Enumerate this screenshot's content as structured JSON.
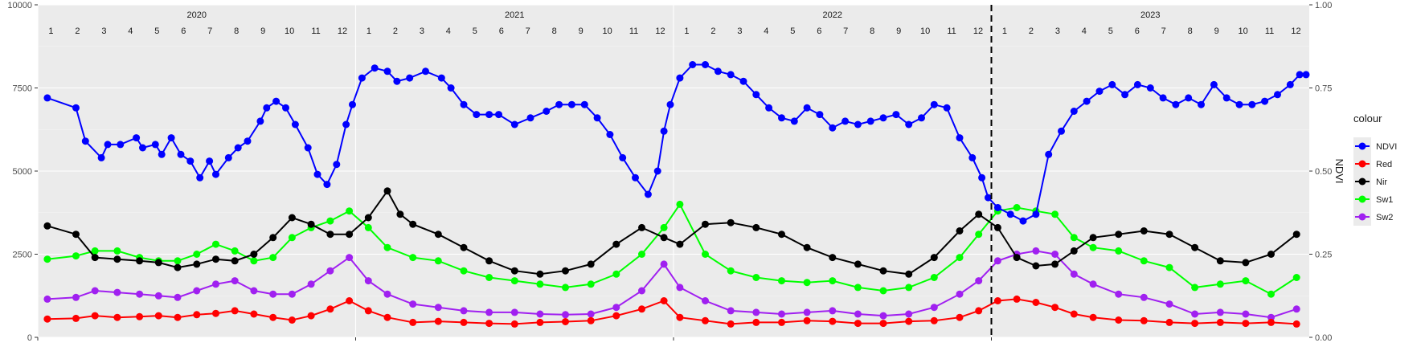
{
  "chart_data": {
    "type": "line",
    "y_left": {
      "lim": [
        0,
        10000
      ],
      "ticks": [
        0,
        2500,
        5000,
        7500,
        10000
      ],
      "tick_labels": [
        "0",
        "2500",
        "5000",
        "7500",
        "10000"
      ]
    },
    "y_right": {
      "label": "NDVI",
      "lim": [
        0,
        1
      ],
      "ticks": [
        0,
        0.25,
        0.5,
        0.75,
        1.0
      ],
      "tick_labels": [
        "0.00",
        "0.25",
        "0.50",
        "0.75",
        "1.00"
      ]
    },
    "x_range": [
      2020.0,
      2024.0
    ],
    "years": [
      {
        "label": "2020",
        "start": 2020
      },
      {
        "label": "2021",
        "start": 2021
      },
      {
        "label": "2022",
        "start": 2022
      },
      {
        "label": "2023",
        "start": 2023
      }
    ],
    "months": [
      "1",
      "2",
      "3",
      "4",
      "5",
      "6",
      "7",
      "8",
      "9",
      "10",
      "11",
      "12"
    ],
    "vline": {
      "x": 2023.0,
      "style": "dashed"
    },
    "grid": true,
    "legend": {
      "title": "colour",
      "position": "right"
    },
    "series": [
      {
        "name": "NDVI",
        "color": "#0000ff",
        "x": [
          2020.03,
          2020.12,
          2020.15,
          2020.2,
          2020.22,
          2020.26,
          2020.31,
          2020.33,
          2020.37,
          2020.39,
          2020.42,
          2020.45,
          2020.48,
          2020.51,
          2020.54,
          2020.56,
          2020.6,
          2020.63,
          2020.66,
          2020.7,
          2020.72,
          2020.75,
          2020.78,
          2020.81,
          2020.85,
          2020.88,
          2020.91,
          2020.94,
          2020.97,
          2020.99,
          2021.02,
          2021.06,
          2021.1,
          2021.13,
          2021.17,
          2021.22,
          2021.27,
          2021.3,
          2021.34,
          2021.38,
          2021.42,
          2021.45,
          2021.5,
          2021.55,
          2021.6,
          2021.64,
          2021.68,
          2021.72,
          2021.76,
          2021.8,
          2021.84,
          2021.88,
          2021.92,
          2021.95,
          2021.97,
          2021.99,
          2022.02,
          2022.06,
          2022.1,
          2022.14,
          2022.18,
          2022.22,
          2022.26,
          2022.3,
          2022.34,
          2022.38,
          2022.42,
          2022.46,
          2022.5,
          2022.54,
          2022.58,
          2022.62,
          2022.66,
          2022.7,
          2022.74,
          2022.78,
          2022.82,
          2022.86,
          2022.9,
          2022.94,
          2022.97,
          2022.99,
          2023.02,
          2023.06,
          2023.1,
          2023.14,
          2023.18,
          2023.22,
          2023.26,
          2023.3,
          2023.34,
          2023.38,
          2023.42,
          2023.46,
          2023.5,
          2023.54,
          2023.58,
          2023.62,
          2023.66,
          2023.7,
          2023.74,
          2023.78,
          2023.82,
          2023.86,
          2023.9,
          2023.94,
          2023.97,
          2023.99
        ],
        "values": [
          0.72,
          0.69,
          0.59,
          0.54,
          0.58,
          0.58,
          0.6,
          0.57,
          0.58,
          0.55,
          0.6,
          0.55,
          0.53,
          0.48,
          0.53,
          0.49,
          0.54,
          0.57,
          0.59,
          0.65,
          0.69,
          0.71,
          0.69,
          0.64,
          0.57,
          0.49,
          0.46,
          0.52,
          0.64,
          0.7,
          0.78,
          0.81,
          0.8,
          0.77,
          0.78,
          0.8,
          0.78,
          0.75,
          0.7,
          0.67,
          0.67,
          0.67,
          0.64,
          0.66,
          0.68,
          0.7,
          0.7,
          0.7,
          0.66,
          0.61,
          0.54,
          0.48,
          0.43,
          0.5,
          0.62,
          0.7,
          0.78,
          0.82,
          0.82,
          0.8,
          0.79,
          0.77,
          0.73,
          0.69,
          0.66,
          0.65,
          0.69,
          0.67,
          0.63,
          0.65,
          0.64,
          0.65,
          0.66,
          0.67,
          0.64,
          0.66,
          0.7,
          0.69,
          0.6,
          0.54,
          0.48,
          0.42,
          0.39,
          0.37,
          0.35,
          0.37,
          0.55,
          0.62,
          0.68,
          0.71,
          0.74,
          0.76,
          0.73,
          0.76,
          0.75,
          0.72,
          0.7,
          0.72,
          0.7,
          0.76,
          0.72,
          0.7,
          0.7,
          0.71,
          0.73,
          0.76,
          0.79,
          0.79
        ]
      },
      {
        "name": "Red",
        "color": "#ff0000",
        "x": [
          2020.03,
          2020.12,
          2020.18,
          2020.25,
          2020.32,
          2020.38,
          2020.44,
          2020.5,
          2020.56,
          2020.62,
          2020.68,
          2020.74,
          2020.8,
          2020.86,
          2020.92,
          2020.98,
          2021.04,
          2021.1,
          2021.18,
          2021.26,
          2021.34,
          2021.42,
          2021.5,
          2021.58,
          2021.66,
          2021.74,
          2021.82,
          2021.9,
          2021.97,
          2022.02,
          2022.1,
          2022.18,
          2022.26,
          2022.34,
          2022.42,
          2022.5,
          2022.58,
          2022.66,
          2022.74,
          2022.82,
          2022.9,
          2022.96,
          2023.02,
          2023.08,
          2023.14,
          2023.2,
          2023.26,
          2023.32,
          2023.4,
          2023.48,
          2023.56,
          2023.64,
          2023.72,
          2023.8,
          2023.88,
          2023.96
        ],
        "values": [
          550,
          570,
          650,
          600,
          620,
          650,
          600,
          680,
          720,
          800,
          700,
          600,
          520,
          650,
          850,
          1100,
          800,
          600,
          450,
          480,
          450,
          420,
          400,
          450,
          470,
          500,
          650,
          850,
          1100,
          600,
          500,
          400,
          450,
          450,
          500,
          480,
          420,
          420,
          480,
          500,
          600,
          800,
          1100,
          1150,
          1050,
          900,
          700,
          600,
          520,
          500,
          450,
          420,
          450,
          420,
          450,
          400
        ]
      },
      {
        "name": "Nir",
        "color": "#000000",
        "x": [
          2020.03,
          2020.12,
          2020.18,
          2020.25,
          2020.32,
          2020.38,
          2020.44,
          2020.5,
          2020.56,
          2020.62,
          2020.68,
          2020.74,
          2020.8,
          2020.86,
          2020.92,
          2020.98,
          2021.04,
          2021.1,
          2021.14,
          2021.18,
          2021.26,
          2021.34,
          2021.42,
          2021.5,
          2021.58,
          2021.66,
          2021.74,
          2021.82,
          2021.9,
          2021.97,
          2022.02,
          2022.1,
          2022.18,
          2022.26,
          2022.34,
          2022.42,
          2022.5,
          2022.58,
          2022.66,
          2022.74,
          2022.82,
          2022.9,
          2022.96,
          2023.02,
          2023.08,
          2023.14,
          2023.2,
          2023.26,
          2023.32,
          2023.4,
          2023.48,
          2023.56,
          2023.64,
          2023.72,
          2023.8,
          2023.88,
          2023.96
        ],
        "values": [
          3350,
          3100,
          2400,
          2350,
          2300,
          2250,
          2100,
          2200,
          2350,
          2300,
          2500,
          3000,
          3600,
          3400,
          3100,
          3100,
          3600,
          4400,
          3700,
          3400,
          3100,
          2700,
          2300,
          2000,
          1900,
          2000,
          2200,
          2800,
          3300,
          3000,
          2800,
          3400,
          3450,
          3300,
          3100,
          2700,
          2400,
          2200,
          2000,
          1900,
          2400,
          3200,
          3700,
          3300,
          2400,
          2150,
          2200,
          2600,
          3000,
          3100,
          3200,
          3100,
          2700,
          2300,
          2250,
          2500,
          3100
        ]
      },
      {
        "name": "Sw1",
        "color": "#00ff00",
        "x": [
          2020.03,
          2020.12,
          2020.18,
          2020.25,
          2020.32,
          2020.38,
          2020.44,
          2020.5,
          2020.56,
          2020.62,
          2020.68,
          2020.74,
          2020.8,
          2020.86,
          2020.92,
          2020.98,
          2021.04,
          2021.1,
          2021.18,
          2021.26,
          2021.34,
          2021.42,
          2021.5,
          2021.58,
          2021.66,
          2021.74,
          2021.82,
          2021.9,
          2021.97,
          2022.02,
          2022.1,
          2022.18,
          2022.26,
          2022.34,
          2022.42,
          2022.5,
          2022.58,
          2022.66,
          2022.74,
          2022.82,
          2022.9,
          2022.96,
          2023.02,
          2023.08,
          2023.14,
          2023.2,
          2023.26,
          2023.32,
          2023.4,
          2023.48,
          2023.56,
          2023.64,
          2023.72,
          2023.8,
          2023.88,
          2023.96
        ],
        "values": [
          2350,
          2450,
          2600,
          2600,
          2400,
          2300,
          2300,
          2500,
          2800,
          2600,
          2300,
          2400,
          3000,
          3300,
          3500,
          3800,
          3300,
          2700,
          2400,
          2300,
          2000,
          1800,
          1700,
          1600,
          1500,
          1600,
          1900,
          2500,
          3300,
          4000,
          2500,
          2000,
          1800,
          1700,
          1650,
          1700,
          1500,
          1400,
          1500,
          1800,
          2400,
          3100,
          3800,
          3900,
          3800,
          3700,
          3000,
          2700,
          2600,
          2300,
          2100,
          1500,
          1600,
          1700,
          1300,
          1800
        ]
      },
      {
        "name": "Sw2",
        "color": "#a020f0",
        "x": [
          2020.03,
          2020.12,
          2020.18,
          2020.25,
          2020.32,
          2020.38,
          2020.44,
          2020.5,
          2020.56,
          2020.62,
          2020.68,
          2020.74,
          2020.8,
          2020.86,
          2020.92,
          2020.98,
          2021.04,
          2021.1,
          2021.18,
          2021.26,
          2021.34,
          2021.42,
          2021.5,
          2021.58,
          2021.66,
          2021.74,
          2021.82,
          2021.9,
          2021.97,
          2022.02,
          2022.1,
          2022.18,
          2022.26,
          2022.34,
          2022.42,
          2022.5,
          2022.58,
          2022.66,
          2022.74,
          2022.82,
          2022.9,
          2022.96,
          2023.02,
          2023.08,
          2023.14,
          2023.2,
          2023.26,
          2023.32,
          2023.4,
          2023.48,
          2023.56,
          2023.64,
          2023.72,
          2023.8,
          2023.88,
          2023.96
        ],
        "values": [
          1150,
          1200,
          1400,
          1350,
          1300,
          1250,
          1200,
          1400,
          1600,
          1700,
          1400,
          1300,
          1300,
          1600,
          2000,
          2400,
          1700,
          1300,
          1000,
          900,
          800,
          750,
          750,
          700,
          680,
          700,
          900,
          1400,
          2200,
          1500,
          1100,
          800,
          750,
          700,
          750,
          800,
          700,
          650,
          700,
          900,
          1300,
          1700,
          2300,
          2500,
          2600,
          2500,
          1900,
          1600,
          1300,
          1200,
          1000,
          700,
          750,
          700,
          600,
          850
        ]
      }
    ]
  }
}
